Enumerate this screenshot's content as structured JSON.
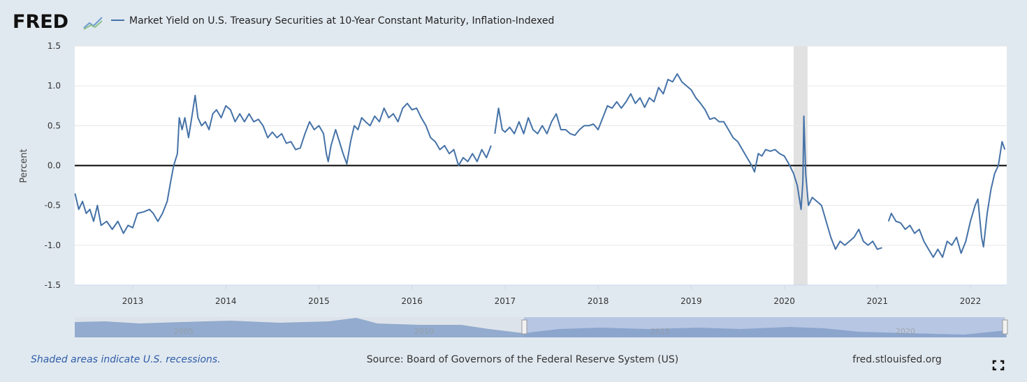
{
  "chart_data": {
    "type": "line",
    "logo": "FRED",
    "title": "Market Yield on U.S. Treasury Securities at 10-Year Constant Maturity, Inflation-Indexed",
    "ylabel": "Percent",
    "xlim": [
      2012.377,
      2022.39
    ],
    "xticks": [
      2013,
      2014,
      2015,
      2016,
      2017,
      2018,
      2019,
      2020,
      2021,
      2022
    ],
    "ylim": [
      -1.5,
      1.5
    ],
    "yticks": [
      1.5,
      {
        "value": 1,
        "label": "1.0"
      },
      0.5,
      {
        "value": 0,
        "label": "0.0"
      },
      -0.5,
      {
        "value": -1,
        "label": "-1.0"
      },
      -1.5
    ],
    "grid": true,
    "recessions": [
      {
        "start": 2020.1,
        "end": 2020.25
      }
    ],
    "series": [
      {
        "name": "Market Yield on U.S. Treasury Securities at 10-Year Constant Maturity, Inflation-Indexed",
        "color": "#4572a7",
        "x": [
          2012.38,
          2012.42,
          2012.46,
          2012.5,
          2012.54,
          2012.58,
          2012.62,
          2012.66,
          2012.72,
          2012.78,
          2012.84,
          2012.9,
          2012.95,
          2013.0,
          2013.05,
          2013.12,
          2013.18,
          2013.22,
          2013.27,
          2013.32,
          2013.37,
          2013.4,
          2013.44,
          2013.48,
          2013.5,
          2013.53,
          2013.56,
          2013.6,
          2013.64,
          2013.67,
          2013.7,
          2013.74,
          2013.78,
          2013.82,
          2013.86,
          2013.9,
          2013.95,
          2014.0,
          2014.05,
          2014.1,
          2014.15,
          2014.2,
          2014.25,
          2014.3,
          2014.35,
          2014.4,
          2014.45,
          2014.5,
          2014.55,
          2014.6,
          2014.65,
          2014.7,
          2014.75,
          2014.8,
          2014.85,
          2014.9,
          2014.95,
          2015.0,
          2015.05,
          2015.08,
          2015.1,
          2015.13,
          2015.18,
          2015.22,
          2015.26,
          2015.3,
          2015.34,
          2015.38,
          2015.42,
          2015.46,
          2015.5,
          2015.55,
          2015.6,
          2015.65,
          2015.7,
          2015.75,
          2015.8,
          2015.85,
          2015.9,
          2015.95,
          2016.0,
          2016.05,
          2016.1,
          2016.15,
          2016.2,
          2016.25,
          2016.3,
          2016.35,
          2016.4,
          2016.45,
          2016.5,
          2016.55,
          2016.6,
          2016.65,
          2016.7,
          2016.75,
          2016.8,
          2016.85,
          2016.87,
          2016.89,
          2016.93,
          2016.97,
          2017.0,
          2017.05,
          2017.1,
          2017.15,
          2017.2,
          2017.25,
          2017.3,
          2017.35,
          2017.4,
          2017.45,
          2017.5,
          2017.55,
          2017.6,
          2017.65,
          2017.7,
          2017.75,
          2017.8,
          2017.85,
          2017.9,
          2017.95,
          2018.0,
          2018.05,
          2018.1,
          2018.15,
          2018.2,
          2018.25,
          2018.3,
          2018.35,
          2018.4,
          2018.45,
          2018.5,
          2018.55,
          2018.6,
          2018.65,
          2018.7,
          2018.75,
          2018.8,
          2018.85,
          2018.9,
          2018.95,
          2019.0,
          2019.05,
          2019.1,
          2019.15,
          2019.2,
          2019.25,
          2019.3,
          2019.35,
          2019.4,
          2019.45,
          2019.5,
          2019.55,
          2019.6,
          2019.65,
          2019.68,
          2019.72,
          2019.76,
          2019.8,
          2019.85,
          2019.9,
          2019.95,
          2020.0,
          2020.05,
          2020.1,
          2020.14,
          2020.18,
          2020.2,
          2020.21,
          2020.23,
          2020.26,
          2020.3,
          2020.35,
          2020.4,
          2020.45,
          2020.5,
          2020.55,
          2020.6,
          2020.65,
          2020.7,
          2020.75,
          2020.8,
          2020.85,
          2020.9,
          2020.95,
          2021.0,
          2021.05,
          2021.09,
          2021.12,
          2021.15,
          2021.2,
          2021.25,
          2021.3,
          2021.35,
          2021.4,
          2021.45,
          2021.5,
          2021.55,
          2021.6,
          2021.65,
          2021.7,
          2021.75,
          2021.8,
          2021.85,
          2021.9,
          2021.95,
          2022.0,
          2022.05,
          2022.08,
          2022.12,
          2022.14,
          2022.18,
          2022.22,
          2022.26,
          2022.3,
          2022.34,
          2022.37
        ],
        "values": [
          -0.35,
          -0.55,
          -0.45,
          -0.6,
          -0.55,
          -0.7,
          -0.5,
          -0.75,
          -0.7,
          -0.8,
          -0.7,
          -0.85,
          -0.75,
          -0.78,
          -0.6,
          -0.58,
          -0.55,
          -0.6,
          -0.7,
          -0.6,
          -0.45,
          -0.25,
          0.0,
          0.15,
          0.6,
          0.45,
          0.6,
          0.35,
          0.65,
          0.88,
          0.6,
          0.5,
          0.55,
          0.45,
          0.65,
          0.7,
          0.6,
          0.75,
          0.7,
          0.55,
          0.65,
          0.55,
          0.65,
          0.55,
          0.58,
          0.5,
          0.35,
          0.42,
          0.35,
          0.4,
          0.28,
          0.3,
          0.2,
          0.22,
          0.4,
          0.55,
          0.45,
          0.5,
          0.4,
          0.15,
          0.05,
          0.25,
          0.45,
          0.3,
          0.15,
          0.02,
          0.3,
          0.5,
          0.45,
          0.6,
          0.55,
          0.5,
          0.62,
          0.55,
          0.72,
          0.6,
          0.65,
          0.55,
          0.72,
          0.78,
          0.7,
          0.72,
          0.6,
          0.5,
          0.35,
          0.3,
          0.2,
          0.25,
          0.15,
          0.2,
          0.0,
          0.1,
          0.05,
          0.15,
          0.05,
          0.2,
          0.1,
          0.25,
          null,
          0.4,
          0.72,
          0.45,
          0.42,
          0.48,
          0.4,
          0.55,
          0.4,
          0.6,
          0.45,
          0.4,
          0.5,
          0.4,
          0.55,
          0.65,
          0.45,
          0.45,
          0.4,
          0.38,
          0.45,
          0.5,
          0.5,
          0.52,
          0.45,
          0.6,
          0.75,
          0.72,
          0.8,
          0.72,
          0.8,
          0.9,
          0.78,
          0.85,
          0.73,
          0.85,
          0.8,
          0.98,
          0.9,
          1.08,
          1.05,
          1.15,
          1.05,
          1.0,
          0.95,
          0.85,
          0.78,
          0.7,
          0.58,
          0.6,
          0.55,
          0.55,
          0.45,
          0.35,
          0.3,
          0.2,
          0.1,
          0.0,
          -0.08,
          0.15,
          0.12,
          0.2,
          0.18,
          0.2,
          0.15,
          0.12,
          0.02,
          -0.1,
          -0.25,
          -0.55,
          -0.2,
          0.62,
          -0.1,
          -0.5,
          -0.4,
          -0.45,
          -0.5,
          -0.7,
          -0.9,
          -1.05,
          -0.95,
          -1.0,
          -0.95,
          -0.9,
          -0.8,
          -0.95,
          -1.0,
          -0.95,
          -1.05,
          -1.03,
          null,
          -0.7,
          -0.6,
          -0.7,
          -0.72,
          -0.8,
          -0.75,
          -0.85,
          -0.8,
          -0.95,
          -1.05,
          -1.15,
          -1.05,
          -1.15,
          -0.95,
          -1.0,
          -0.9,
          -1.1,
          -0.95,
          -0.7,
          -0.5,
          -0.42,
          -0.9,
          -1.02,
          -0.6,
          -0.3,
          -0.1,
          0.0,
          0.3,
          0.2
        ]
      }
    ],
    "navigator_labels": [
      "2005",
      "2010",
      "2015",
      "2020"
    ],
    "footer": {
      "recession_note": "Shaded areas indicate U.S. recessions.",
      "source": "Source: Board of Governors of the Federal Reserve System (US)",
      "site": "fred.stlouisfed.org"
    }
  }
}
